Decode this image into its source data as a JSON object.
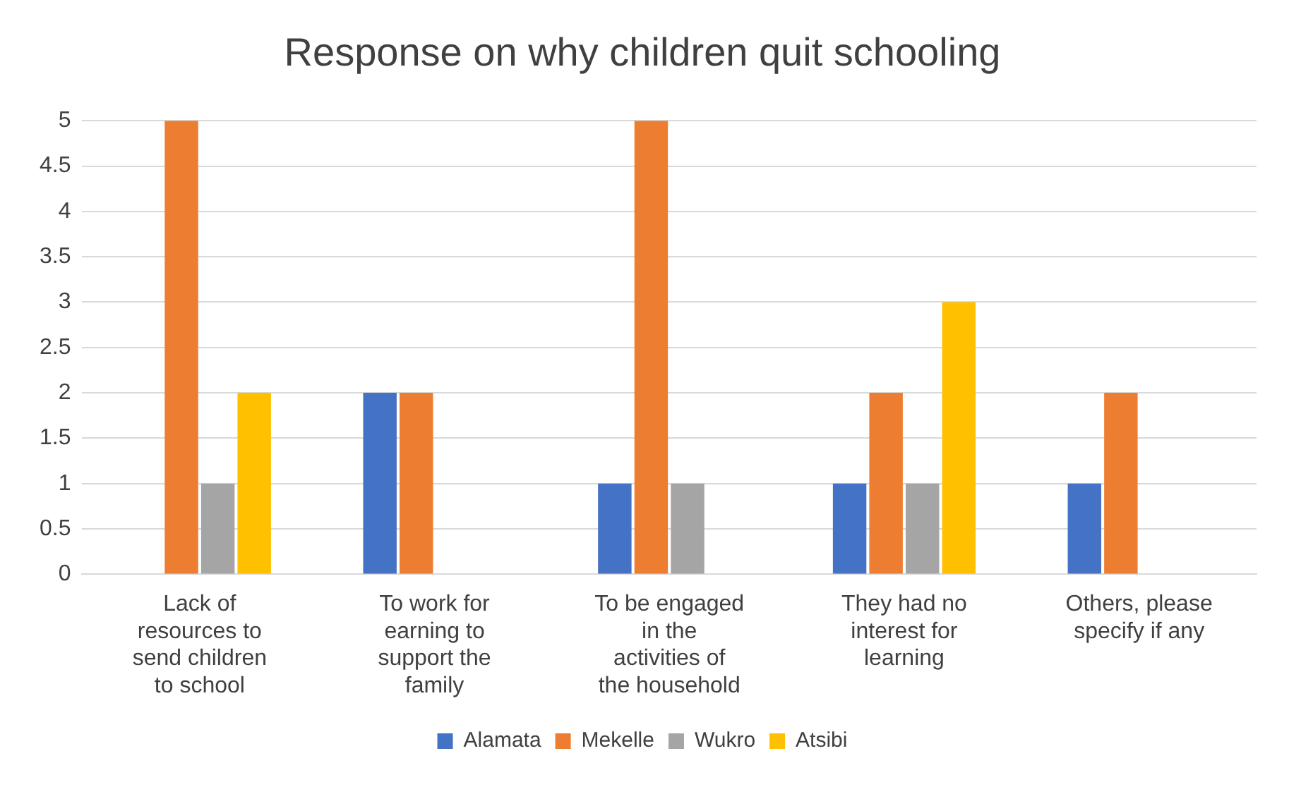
{
  "chart_data": {
    "type": "bar",
    "title": "Response on why children quit schooling",
    "categories": [
      "Lack of resources to send children to school",
      "To work for earning to support the family",
      "To be engaged in the activities of the household",
      "They had no interest for learning",
      "Others, please specify if any"
    ],
    "series": [
      {
        "name": "Alamata",
        "color": "#4472c4",
        "values": [
          0,
          2,
          1,
          1,
          1
        ]
      },
      {
        "name": "Mekelle",
        "color": "#ed7d31",
        "values": [
          5,
          2,
          5,
          2,
          2
        ]
      },
      {
        "name": "Wukro",
        "color": "#a5a5a5",
        "values": [
          1,
          0,
          1,
          1,
          0
        ]
      },
      {
        "name": "Atsibi",
        "color": "#ffc000",
        "values": [
          2,
          0,
          0,
          3,
          0
        ]
      }
    ],
    "ylim": [
      0,
      5
    ],
    "yticks": [
      0,
      0.5,
      1,
      1.5,
      2,
      2.5,
      3,
      3.5,
      4,
      4.5,
      5
    ],
    "grid": "y",
    "legend": "bottom"
  }
}
